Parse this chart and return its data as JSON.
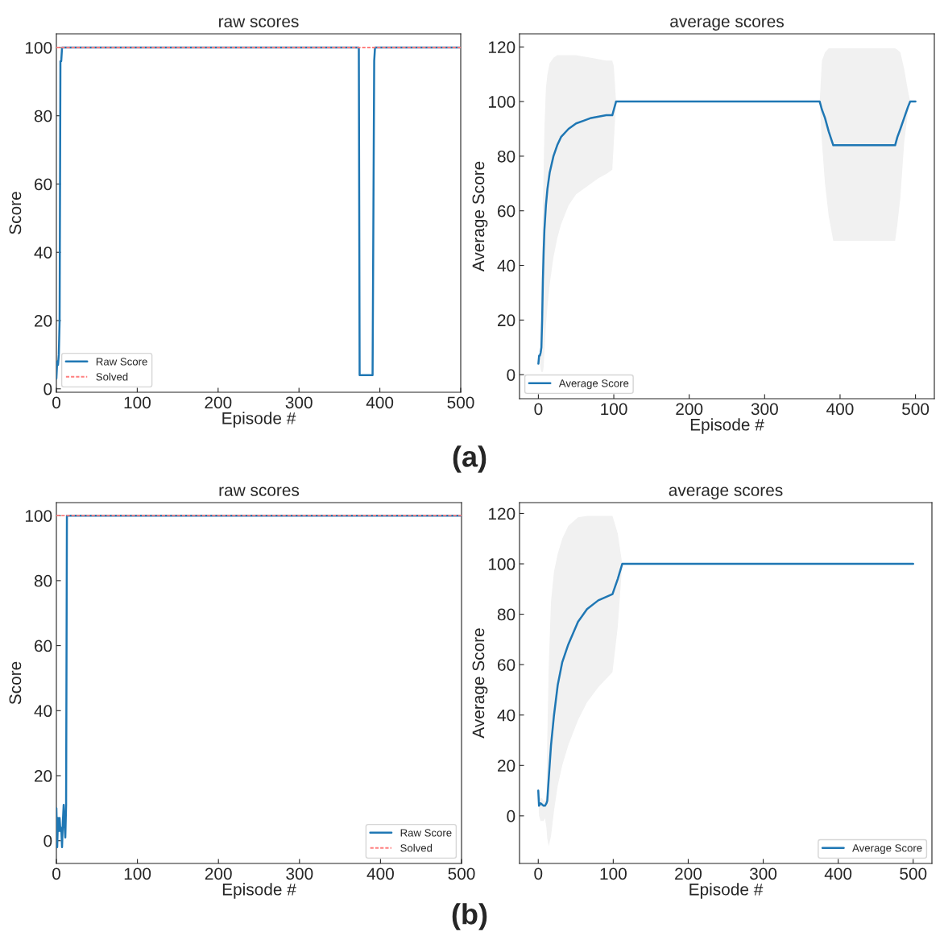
{
  "chart_data": [
    {
      "type": "line",
      "title": "raw scores",
      "xlabel": "Episode #",
      "ylabel": "Score",
      "xlim": [
        0,
        500
      ],
      "ylim": [
        -1,
        104
      ],
      "xticks": [
        0,
        100,
        200,
        300,
        400,
        500
      ],
      "yticks": [
        0,
        20,
        40,
        60,
        80,
        100
      ],
      "legend": "bottom left",
      "annotations": [
        "(a)"
      ],
      "series": [
        {
          "name": "Raw Score",
          "color": "#1f77b4",
          "x": [
            0,
            1,
            2,
            3,
            4,
            5,
            6,
            7,
            374,
            375,
            391,
            393,
            394,
            500
          ],
          "values": [
            3,
            8,
            7,
            10,
            20,
            96,
            96,
            100,
            100,
            4,
            4,
            96,
            100,
            100
          ]
        },
        {
          "name": "Solved",
          "color": "#ff7f7f",
          "line_style": "dashed",
          "x": [
            0,
            500
          ],
          "values": [
            100,
            100
          ]
        }
      ]
    },
    {
      "type": "line",
      "title": "average scores",
      "xlabel": "Episode #",
      "ylabel": "Average Score",
      "xlim": [
        -25,
        525
      ],
      "ylim": [
        -8.8,
        124.8
      ],
      "xticks": [
        0,
        100,
        200,
        300,
        400,
        500
      ],
      "yticks": [
        0,
        20,
        40,
        60,
        80,
        100,
        120
      ],
      "legend": "bottom left",
      "series": [
        {
          "name": "Average Score",
          "color": "#1f77b4",
          "x": [
            0,
            1,
            2,
            3,
            4,
            5,
            6,
            7,
            8,
            10,
            12,
            15,
            20,
            25,
            30,
            40,
            50,
            60,
            70,
            80,
            90,
            98,
            100,
            103,
            200,
            300,
            373,
            376,
            380,
            385,
            391,
            430,
            473,
            476,
            480,
            485,
            490,
            493,
            500
          ],
          "values": [
            4,
            7,
            7,
            8,
            10,
            20,
            35,
            45,
            53,
            62,
            68,
            74,
            80,
            84,
            87,
            90,
            92,
            93,
            94,
            94.5,
            95,
            95,
            97,
            100,
            100,
            100,
            100,
            97,
            94,
            89,
            84,
            84,
            84,
            87,
            90,
            94,
            98,
            100,
            100
          ],
          "upper": [
            4,
            7,
            8,
            10,
            30,
            45,
            60,
            75,
            90,
            105,
            110,
            114,
            116,
            117,
            117,
            117,
            117,
            116.5,
            116,
            115.5,
            115,
            115,
            113,
            100,
            100,
            100,
            100,
            115,
            118,
            119.5,
            119.5,
            119.5,
            119.5,
            119,
            118,
            112,
            104,
            100,
            100
          ],
          "lower": [
            4,
            6,
            4,
            2,
            1,
            1,
            1,
            3,
            8,
            18,
            25,
            33,
            43,
            50,
            55,
            62,
            66,
            68,
            70,
            72,
            73.5,
            75,
            85,
            100,
            100,
            100,
            100,
            85,
            70,
            58,
            49,
            49,
            49,
            55,
            65,
            85,
            96,
            100,
            100
          ]
        }
      ]
    },
    {
      "type": "line",
      "title": "raw scores",
      "xlabel": "Episode #",
      "ylabel": "Score",
      "xlim": [
        0,
        500
      ],
      "ylim": [
        -7,
        104
      ],
      "xticks": [
        0,
        100,
        200,
        300,
        400,
        500
      ],
      "yticks": [
        0,
        20,
        40,
        60,
        80,
        100
      ],
      "legend": "bottom right",
      "annotations": [
        "(b)"
      ],
      "series": [
        {
          "name": "Raw Score",
          "color": "#1f77b4",
          "x": [
            0,
            1,
            2,
            3,
            4,
            5,
            6,
            7,
            8,
            9,
            10,
            11,
            12,
            13,
            500
          ],
          "values": [
            10,
            -2,
            7,
            3,
            7,
            3,
            4,
            -2,
            6,
            11,
            5,
            1,
            11,
            100,
            100
          ]
        },
        {
          "name": "Solved",
          "color": "#ff7f7f",
          "line_style": "dashed",
          "x": [
            0,
            500
          ],
          "values": [
            100,
            100
          ]
        }
      ]
    },
    {
      "type": "line",
      "title": "average scores",
      "xlabel": "Episode #",
      "ylabel": "Average Score",
      "xlim": [
        -25,
        525
      ],
      "ylim": [
        -18.9,
        124.3
      ],
      "xticks": [
        0,
        100,
        200,
        300,
        400,
        500
      ],
      "yticks": [
        0,
        20,
        40,
        60,
        80,
        100,
        120
      ],
      "legend": "bottom right",
      "series": [
        {
          "name": "Average Score",
          "color": "#1f77b4",
          "x": [
            0,
            1,
            3,
            5,
            7,
            9,
            11,
            12,
            14,
            17,
            21,
            26,
            32,
            40,
            53,
            65,
            80,
            99,
            106,
            112,
            200,
            300,
            400,
            500
          ],
          "values": [
            10,
            4,
            5,
            4.5,
            4,
            4,
            5,
            6,
            15,
            28,
            40,
            52,
            61,
            68,
            77,
            82,
            85.5,
            88,
            94,
            100,
            100,
            100,
            100,
            100
          ],
          "upper": [
            10,
            8,
            7,
            7,
            6,
            6,
            8,
            30,
            60,
            85,
            97,
            104,
            110,
            115,
            118.5,
            119,
            119,
            119,
            112,
            100,
            100,
            100,
            100,
            100
          ],
          "lower": [
            10,
            0,
            -2,
            -2,
            -2,
            -1,
            -5,
            -9,
            -12,
            -8,
            2,
            12,
            20,
            28,
            38,
            45,
            51,
            57,
            75,
            100,
            100,
            100,
            100,
            100
          ]
        }
      ]
    }
  ]
}
